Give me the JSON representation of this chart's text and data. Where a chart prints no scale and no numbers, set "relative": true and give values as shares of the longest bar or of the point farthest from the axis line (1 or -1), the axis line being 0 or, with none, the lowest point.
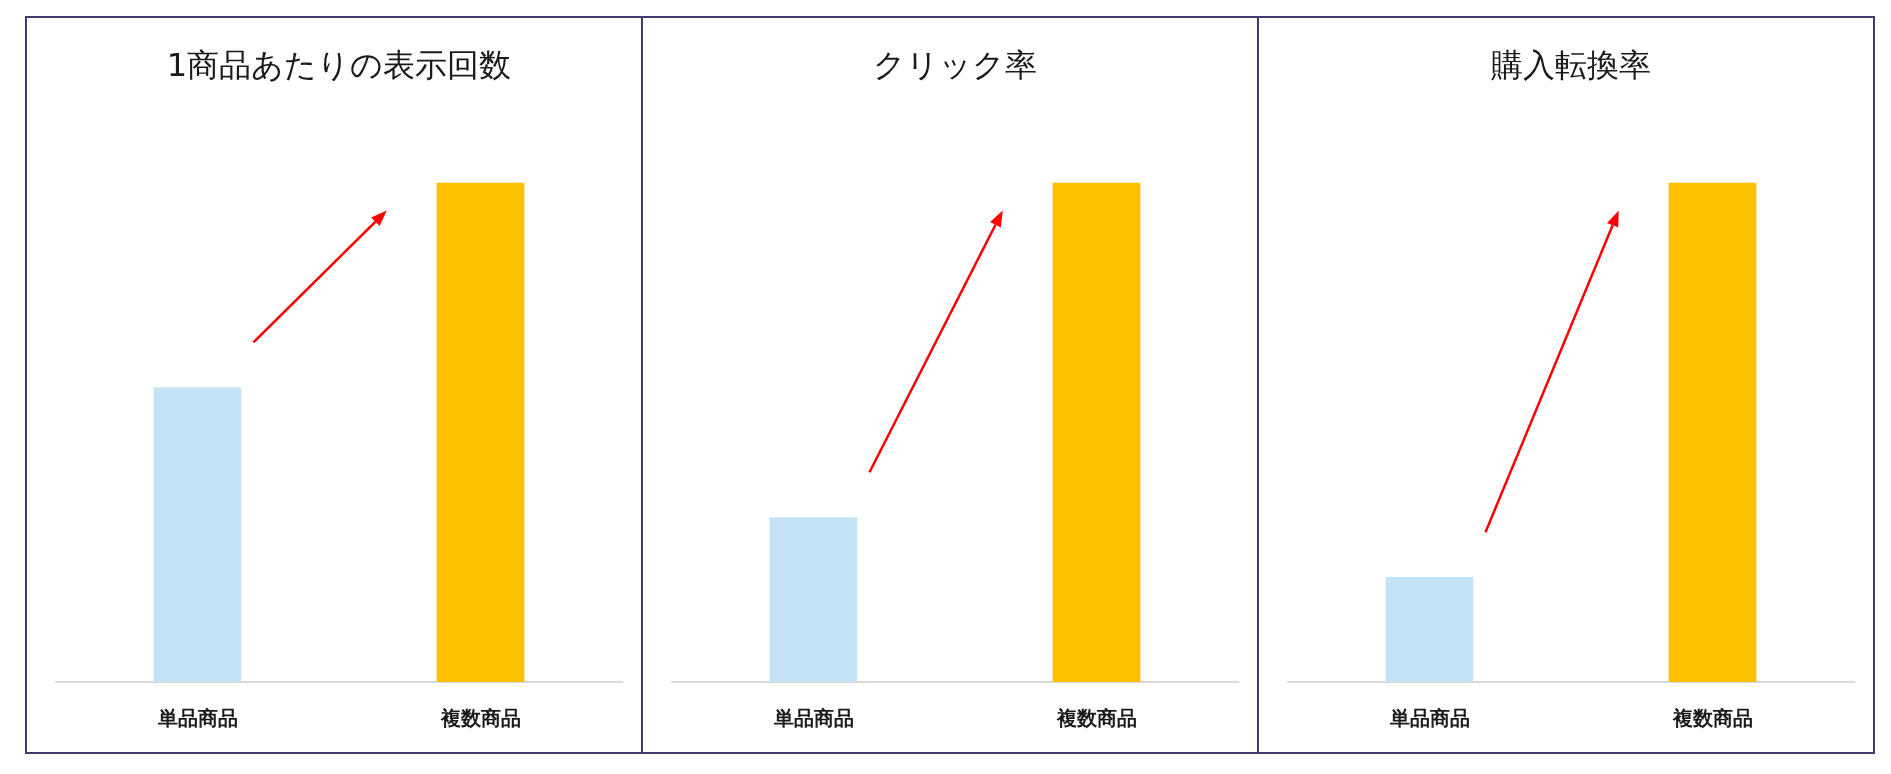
{
  "chart_data": [
    {
      "type": "bar",
      "title": "1商品あたりの表示回数",
      "categories": [
        "単品商品",
        "複数商品"
      ],
      "values": [
        0.59,
        1
      ],
      "colors": [
        "#c5e3f7",
        "#ffc000"
      ],
      "relative": true
    },
    {
      "type": "bar",
      "title": "クリック率",
      "categories": [
        "単品商品",
        "複数商品"
      ],
      "values": [
        0.33,
        1
      ],
      "colors": [
        "#c5e3f7",
        "#ffc000"
      ],
      "relative": true
    },
    {
      "type": "bar",
      "title": "購入転換率",
      "categories": [
        "単品商品",
        "複数商品"
      ],
      "values": [
        0.21,
        1
      ],
      "colors": [
        "#c5e3f7",
        "#ffc000"
      ],
      "relative": true
    }
  ]
}
